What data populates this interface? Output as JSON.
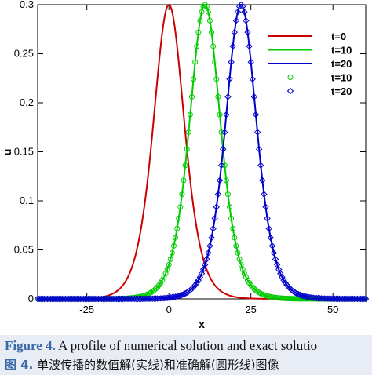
{
  "chart_data": {
    "type": "line",
    "xlabel": "x",
    "ylabel": "u",
    "xlim": [
      -40,
      60
    ],
    "ylim": [
      0,
      0.3
    ],
    "x_ticks": [
      -25,
      0,
      25,
      50
    ],
    "y_ticks": [
      0,
      0.05,
      0.1,
      0.15,
      0.2,
      0.25,
      0.3
    ],
    "x_tick_labels": [
      "-25",
      "0",
      "25",
      "50"
    ],
    "y_tick_labels": [
      "0",
      "0.05",
      "0.1",
      "0.15",
      "0.2",
      "0.25",
      "0.3"
    ],
    "grid": false,
    "legend_position": "top-right",
    "wave_amplitude": 0.3,
    "wave_width": 0.158,
    "wave_speed": 1.1,
    "series": [
      {
        "name": "t=0",
        "kind": "line",
        "t": 0,
        "color": "#cc0000"
      },
      {
        "name": "t=10",
        "kind": "line",
        "t": 10,
        "color": "#00cc00"
      },
      {
        "name": "t=20",
        "kind": "line",
        "t": 20,
        "color": "#0000cc"
      },
      {
        "name": "t=10",
        "kind": "markers",
        "marker": "circle",
        "t": 10,
        "color": "#00cc00"
      },
      {
        "name": "t=20",
        "kind": "markers",
        "marker": "diamond",
        "t": 20,
        "color": "#0000cc"
      }
    ],
    "marker_x_step": 0.5
  },
  "caption": {
    "figure_label_en": "Figure 4.",
    "text_en": " A profile of numerical solution and exact solutio",
    "figure_label_zh": "图 4.",
    "text_zh": " 单波传播的数值解(实线)和准确解(圆形线)图像"
  }
}
